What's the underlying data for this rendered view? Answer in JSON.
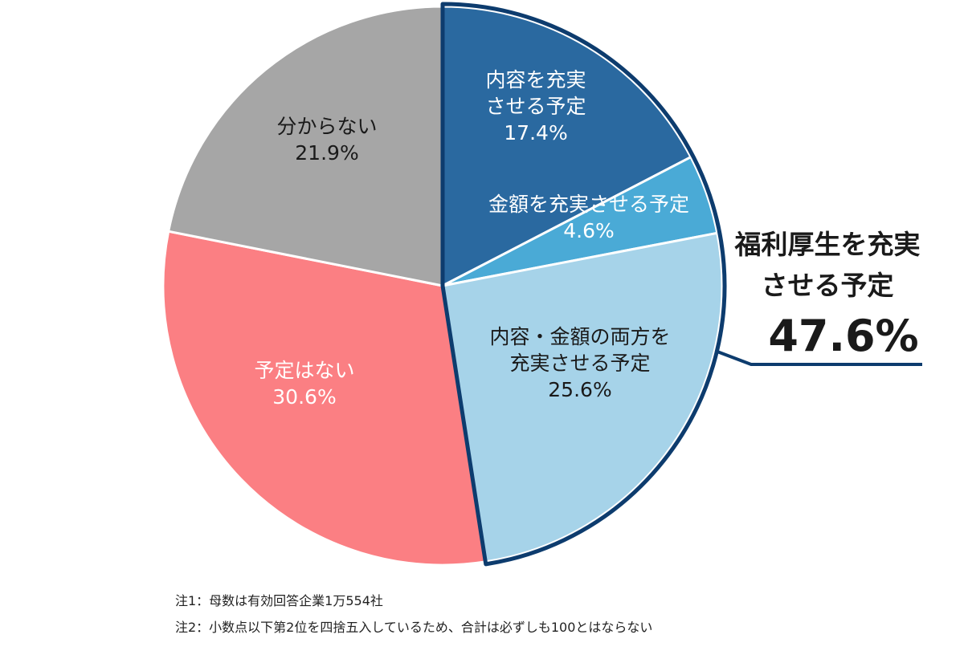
{
  "chart_data": {
    "type": "pie",
    "start": "12 o'clock",
    "direction": "clockwise",
    "slices": [
      {
        "key": "content",
        "lines": [
          "内容を充実",
          "させる予定"
        ],
        "value": 17.4,
        "label": "17.4%",
        "color": "#2a69a0",
        "text_color": "#ffffff",
        "group": "enhance"
      },
      {
        "key": "amount",
        "lines": [
          "金額を充実させる予定"
        ],
        "value": 4.6,
        "label": "4.6%",
        "color": "#4aaad6",
        "text_color": "#ffffff",
        "group": "enhance"
      },
      {
        "key": "both",
        "lines": [
          "内容・金額の両方を",
          "充実させる予定"
        ],
        "value": 25.6,
        "label": "25.6%",
        "color": "#a6d3e9",
        "text_color": "#1a1a1a",
        "group": "enhance"
      },
      {
        "key": "none",
        "lines": [
          "予定はない"
        ],
        "value": 30.6,
        "label": "30.6%",
        "color": "#fb7f83",
        "text_color": "#ffffff",
        "group": null
      },
      {
        "key": "unknown",
        "lines": [
          "分からない"
        ],
        "value": 21.9,
        "label": "21.9%",
        "color": "#a6a6a6",
        "text_color": "#1a1a1a",
        "group": null
      }
    ],
    "group_callout": {
      "group": "enhance",
      "lines": [
        "福利厚生を充実",
        "させる予定"
      ],
      "value": 47.6,
      "label": "47.6%",
      "outline_color": "#0d3c6e"
    }
  },
  "notes": [
    "注1：母数は有効回答企業1万554社",
    "注2：小数点以下第2位を四捨五入しているため、合計は必ずしも100とはならない"
  ]
}
